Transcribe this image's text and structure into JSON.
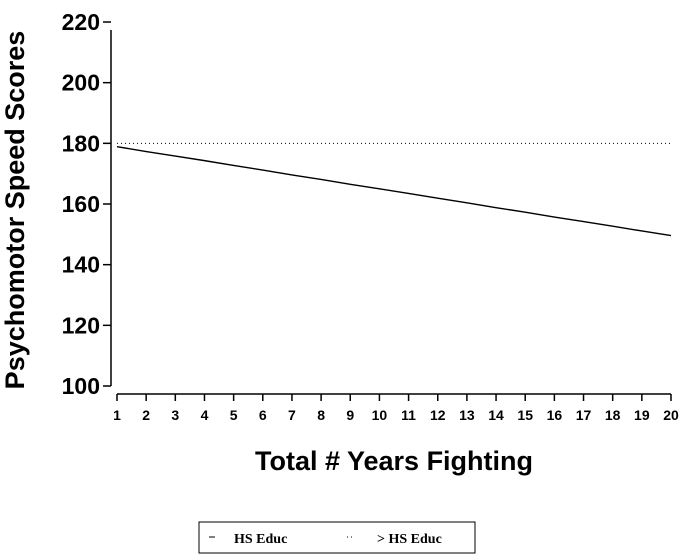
{
  "chart_data": {
    "type": "line",
    "xlabel": "Total # Years Fighting",
    "ylabel": "Psychomotor Speed Scores",
    "x": [
      1,
      2,
      3,
      4,
      5,
      6,
      7,
      8,
      9,
      10,
      11,
      12,
      13,
      14,
      15,
      16,
      17,
      18,
      19,
      20
    ],
    "xticks": [
      "1",
      "2",
      "3",
      "4",
      "5",
      "6",
      "7",
      "8",
      "9",
      "10",
      "11",
      "12",
      "13",
      "14",
      "15",
      "16",
      "17",
      "18",
      "19",
      "20"
    ],
    "yticks": [
      "100",
      "120",
      "140",
      "160",
      "180",
      "200",
      "220"
    ],
    "ylim": [
      100,
      220
    ],
    "xlim": [
      1,
      20
    ],
    "grid": false,
    "legend_position": "bottom",
    "series": [
      {
        "name": "HS Educ",
        "style": "solid",
        "color": "#000000",
        "values": [
          178.9,
          177.3,
          175.8,
          174.3,
          172.7,
          171.2,
          169.6,
          168.1,
          166.5,
          165.0,
          163.5,
          161.9,
          160.4,
          158.8,
          157.3,
          155.7,
          154.2,
          152.7,
          151.1,
          149.6
        ]
      },
      {
        "name": "> HS Educ",
        "style": "dotted",
        "color": "#000000",
        "values": [
          180,
          180,
          180,
          180,
          180,
          180,
          180,
          180,
          180,
          180,
          180,
          180,
          180,
          180,
          180,
          180,
          180,
          180,
          180,
          180
        ]
      }
    ]
  }
}
